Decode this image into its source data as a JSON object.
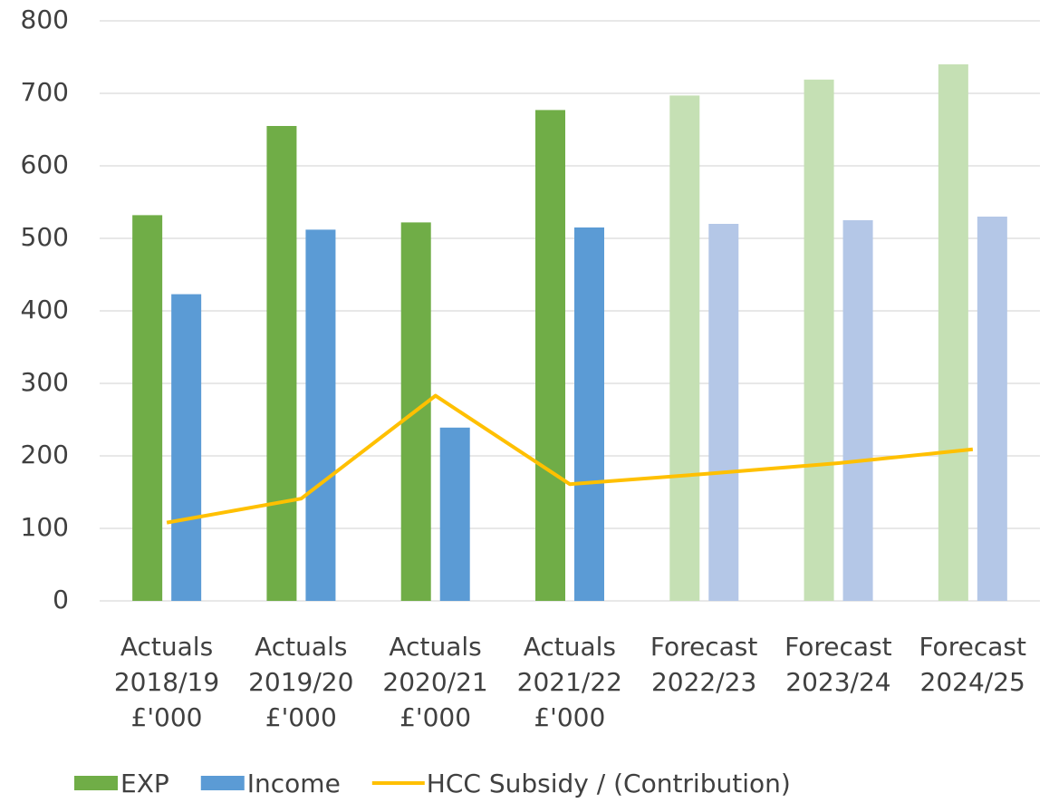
{
  "chart_data": {
    "type": "bar_line",
    "categories": [
      "Actuals 2018/19 £'000",
      "Actuals 2019/20 £'000",
      "Actuals 2020/21 £'000",
      "Actuals 2021/22 £'000",
      "Forecast 2022/23",
      "Forecast 2023/24",
      "Forecast 2024/25"
    ],
    "series": [
      {
        "name": "EXP",
        "type": "bar",
        "color": "#70ad47",
        "colors": [
          "#70ad47",
          "#70ad47",
          "#70ad47",
          "#70ad47",
          "#c5e0b4",
          "#c5e0b4",
          "#c5e0b4"
        ],
        "values": [
          532,
          655,
          522,
          677,
          697,
          719,
          740
        ]
      },
      {
        "name": "Income",
        "type": "bar",
        "color": "#5b9bd5",
        "colors": [
          "#5b9bd5",
          "#5b9bd5",
          "#5b9bd5",
          "#5b9bd5",
          "#b4c7e7",
          "#b4c7e7",
          "#b4c7e7"
        ],
        "values": [
          423,
          512,
          239,
          515,
          520,
          525,
          530
        ]
      },
      {
        "name": "HCC Subsidy / (Contribution)",
        "type": "line",
        "color": "#ffc000",
        "values": [
          108,
          141,
          283,
          161,
          175,
          190,
          209
        ]
      }
    ],
    "ylim": [
      0,
      800
    ],
    "yticks": [
      0,
      100,
      200,
      300,
      400,
      500,
      600,
      700,
      800
    ],
    "grid": true,
    "legend": "bottom"
  }
}
